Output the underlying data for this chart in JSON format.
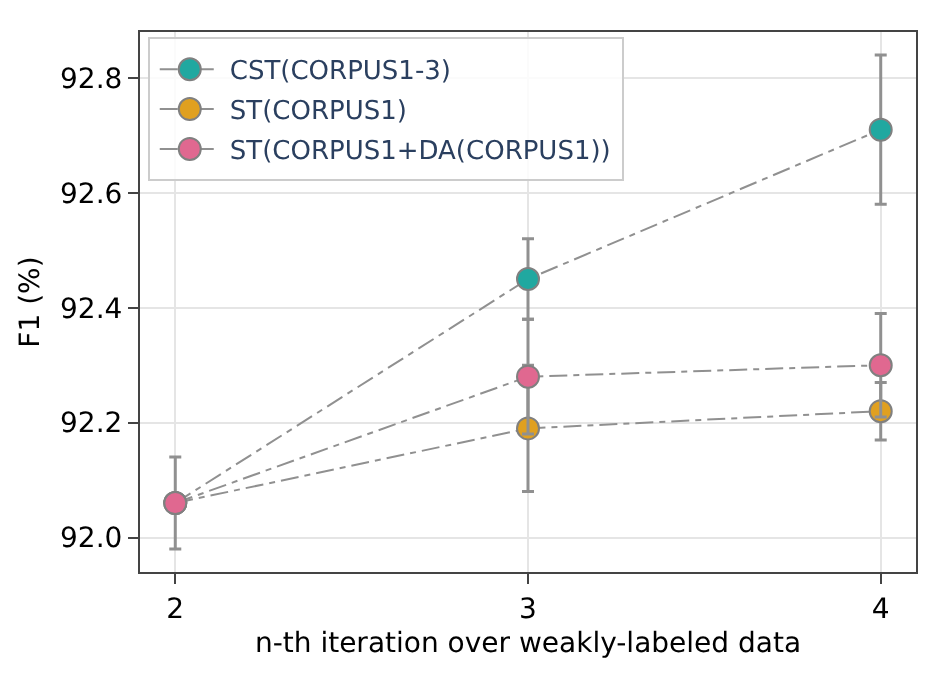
{
  "chart_data": {
    "type": "line",
    "xlabel": "n-th iteration over weakly-labeled data",
    "ylabel": "F1 (%)",
    "x": [
      2,
      3,
      4
    ],
    "series": [
      {
        "name": "CST(CORPUS1-3)",
        "color": "#20a8a0",
        "values": [
          92.06,
          92.45,
          92.71
        ],
        "errors": [
          0.08,
          0.07,
          0.13
        ]
      },
      {
        "name": "ST(CORPUS1)",
        "color": "#e0a020",
        "values": [
          92.06,
          92.19,
          92.22
        ],
        "errors": [
          null,
          0.11,
          0.05
        ]
      },
      {
        "name": "ST(CORPUS1+DA(CORPUS1))",
        "color": "#e06890",
        "values": [
          92.06,
          92.28,
          92.3
        ],
        "errors": [
          null,
          0.1,
          0.09
        ]
      }
    ],
    "xlim": [
      1.9,
      4.1
    ],
    "xticks": [
      2,
      3,
      4
    ],
    "ylim": [
      91.94,
      92.88
    ],
    "yticks": [
      {
        "value": 92.0,
        "label": "92.0"
      },
      {
        "value": 92.2,
        "label": "92.2"
      },
      {
        "value": 92.4,
        "label": "92.4"
      },
      {
        "value": 92.6,
        "label": "92.6"
      },
      {
        "value": 92.8,
        "label": "92.8"
      }
    ],
    "grid": true,
    "legend": "top left",
    "marker": "circle",
    "line_style": "dashed"
  }
}
